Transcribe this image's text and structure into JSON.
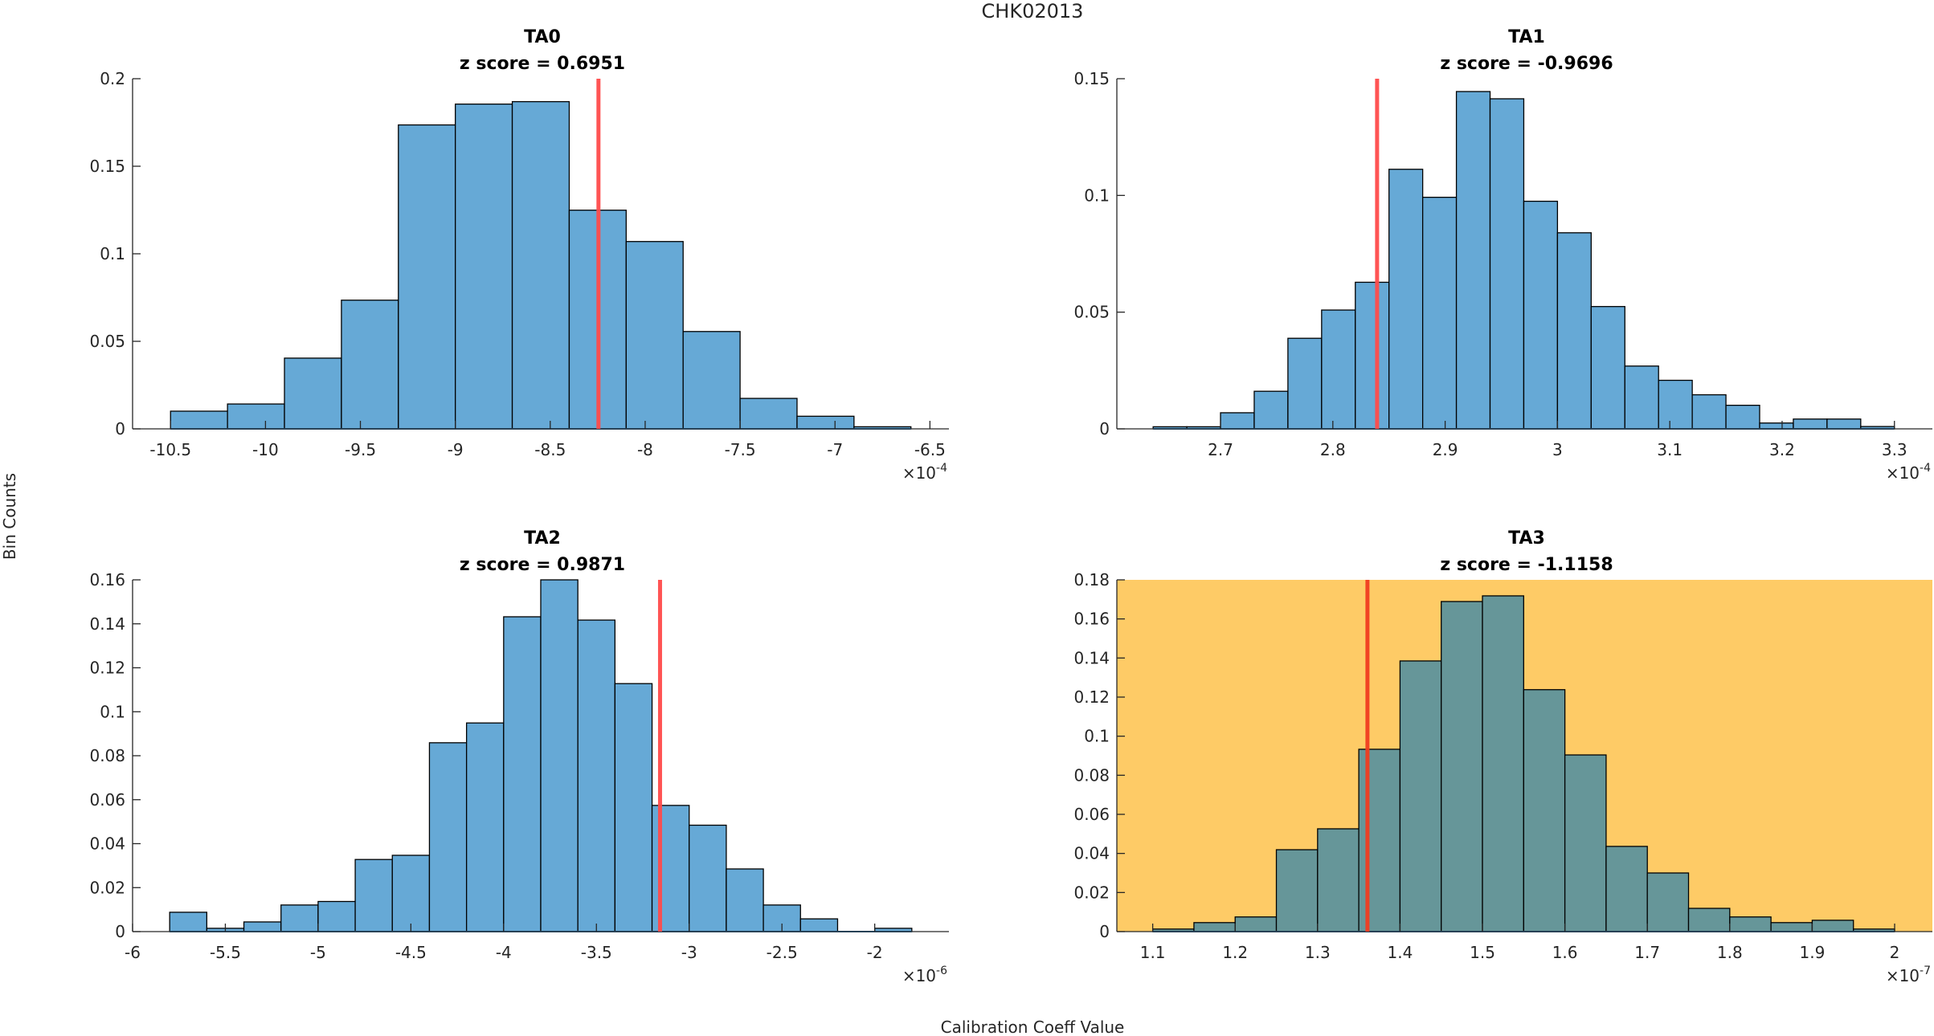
{
  "figure": {
    "title": "CHK02013",
    "ylabel": "Bin Counts",
    "xlabel": "Calibration Coeff Value"
  },
  "colors": {
    "bar_default": "#66a9d6",
    "bar_highlight": "#669699",
    "highlight_background": "#fecb66",
    "zscore_line": "#ff4b4b",
    "zscore_line_on_highlight": "#f03c20"
  },
  "chart_data": [
    {
      "type": "bar",
      "subtype": "histogram",
      "title": "TA0",
      "subtitle": "z score = 0.6951",
      "z_score": 0.6951,
      "highlighted": false,
      "bin_edges": [
        -10.5,
        -10.2,
        -9.9,
        -9.6,
        -9.3,
        -9.0,
        -8.7,
        -8.4,
        -8.1,
        -7.8,
        -7.5,
        -7.2,
        -6.9,
        -6.6
      ],
      "values": [
        0.0101,
        0.0142,
        0.0404,
        0.0735,
        0.1736,
        0.1855,
        0.1869,
        0.1249,
        0.107,
        0.0556,
        0.0174,
        0.0072,
        0.0012
      ],
      "marker_x": -8.246,
      "x_multiplier": "×10^-4",
      "x_exponent": "-4",
      "xlim": [
        -10.7,
        -6.4
      ],
      "ylim": [
        0,
        0.2
      ],
      "xticks": [
        -10.5,
        -10,
        -9.5,
        -9,
        -8.5,
        -8,
        -7.5,
        -7,
        -6.5
      ],
      "xtick_labels": [
        "-10.5",
        "-10",
        "-9.5",
        "-9",
        "-8.5",
        "-8",
        "-7.5",
        "-7",
        "-6.5"
      ],
      "yticks": [
        0,
        0.05,
        0.1,
        0.15,
        0.2
      ],
      "ytick_labels": [
        "0",
        "0.05",
        "0.1",
        "0.15",
        "0.2"
      ],
      "grid": false
    },
    {
      "type": "bar",
      "subtype": "histogram",
      "title": "TA1",
      "subtitle": "z score = -0.9696",
      "z_score": -0.9696,
      "highlighted": false,
      "bin_edges": [
        2.64,
        2.67,
        2.7,
        2.73,
        2.76,
        2.79,
        2.82,
        2.85,
        2.88,
        2.91,
        2.94,
        2.97,
        3.0,
        3.03,
        3.06,
        3.09,
        3.12,
        3.15,
        3.18,
        3.21,
        3.24,
        3.27,
        3.3
      ],
      "values": [
        0.0009,
        0.0009,
        0.0069,
        0.0161,
        0.0388,
        0.0509,
        0.0628,
        0.1112,
        0.0992,
        0.1445,
        0.1414,
        0.0975,
        0.084,
        0.0524,
        0.0269,
        0.0208,
        0.0146,
        0.0101,
        0.0025,
        0.0042,
        0.0042,
        0.001
      ],
      "marker_x": 2.8394,
      "x_multiplier": "×10^-4",
      "x_exponent": "-4",
      "xlim": [
        2.6077,
        3.3338
      ],
      "ylim": [
        0,
        0.15
      ],
      "xticks": [
        2.7,
        2.8,
        2.9,
        3.0,
        3.1,
        3.2,
        3.3
      ],
      "xtick_labels": [
        "2.7",
        "2.8",
        "2.9",
        "3",
        "3.1",
        "3.2",
        "3.3"
      ],
      "yticks": [
        0,
        0.05,
        0.1,
        0.15
      ],
      "ytick_labels": [
        "0",
        "0.05",
        "0.1",
        "0.15"
      ],
      "grid": false
    },
    {
      "type": "bar",
      "subtype": "histogram",
      "title": "TA2",
      "subtitle": "z score = 0.9871",
      "z_score": 0.9871,
      "highlighted": false,
      "bin_edges": [
        -5.8,
        -5.6,
        -5.4,
        -5.2,
        -5.0,
        -4.8,
        -4.6,
        -4.4,
        -4.2,
        -4.0,
        -3.8,
        -3.6,
        -3.4,
        -3.2,
        -3.0,
        -2.8,
        -2.6,
        -2.4,
        -2.2,
        -2.0,
        -1.8
      ],
      "values": [
        0.0088,
        0.0015,
        0.0044,
        0.0121,
        0.0137,
        0.0328,
        0.0347,
        0.0859,
        0.0949,
        0.1432,
        0.16,
        0.1417,
        0.1128,
        0.0574,
        0.0484,
        0.0285,
        0.0121,
        0.0058,
        0.0,
        0.0015
      ],
      "marker_x": -3.157,
      "x_multiplier": "×10^-6",
      "x_exponent": "-6",
      "xlim": [
        -6.0,
        -1.6
      ],
      "ylim": [
        0,
        0.16
      ],
      "xticks": [
        -6,
        -5.5,
        -5,
        -4.5,
        -4,
        -3.5,
        -3,
        -2.5,
        -2
      ],
      "xtick_labels": [
        "-6",
        "-5.5",
        "-5",
        "-4.5",
        "-4",
        "-3.5",
        "-3",
        "-2.5",
        "-2"
      ],
      "yticks": [
        0,
        0.02,
        0.04,
        0.06,
        0.08,
        0.1,
        0.12,
        0.14,
        0.16
      ],
      "ytick_labels": [
        "0",
        "0.02",
        "0.04",
        "0.06",
        "0.08",
        "0.1",
        "0.12",
        "0.14",
        "0.16"
      ],
      "grid": false
    },
    {
      "type": "bar",
      "subtype": "histogram",
      "title": "TA3",
      "subtitle": "z score = -1.1158",
      "z_score": -1.1158,
      "highlighted": true,
      "bin_edges": [
        1.1,
        1.15,
        1.2,
        1.25,
        1.3,
        1.35,
        1.4,
        1.45,
        1.5,
        1.55,
        1.6,
        1.65,
        1.7,
        1.75,
        1.8,
        1.85,
        1.9,
        1.95,
        2.0
      ],
      "values": [
        0.0013,
        0.0046,
        0.0075,
        0.0419,
        0.0526,
        0.0933,
        0.1385,
        0.1689,
        0.1718,
        0.1238,
        0.0904,
        0.0436,
        0.03,
        0.0119,
        0.0075,
        0.0046,
        0.0058,
        0.0013
      ],
      "marker_x": 1.3605,
      "x_multiplier": "×10^-7",
      "x_exponent": "-7",
      "xlim": [
        1.0565,
        2.0458
      ],
      "ylim": [
        0,
        0.18
      ],
      "xticks": [
        1.1,
        1.2,
        1.3,
        1.4,
        1.5,
        1.6,
        1.7,
        1.8,
        1.9,
        2.0
      ],
      "xtick_labels": [
        "1.1",
        "1.2",
        "1.3",
        "1.4",
        "1.5",
        "1.6",
        "1.7",
        "1.8",
        "1.9",
        "2"
      ],
      "yticks": [
        0,
        0.02,
        0.04,
        0.06,
        0.08,
        0.1,
        0.12,
        0.14,
        0.16,
        0.18
      ],
      "ytick_labels": [
        "0",
        "0.02",
        "0.04",
        "0.06",
        "0.08",
        "0.1",
        "0.12",
        "0.14",
        "0.16",
        "0.18"
      ],
      "grid": false
    }
  ]
}
